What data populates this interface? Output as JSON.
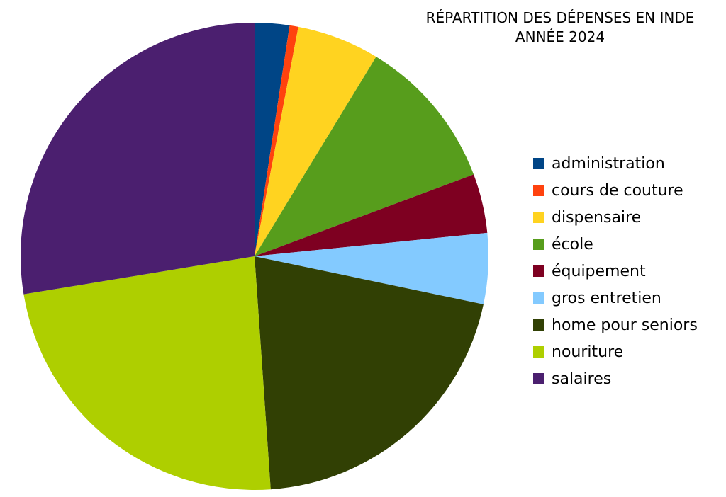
{
  "chart_data": {
    "type": "pie",
    "title": "RÉPARTITION DES DÉPENSES EN INDE",
    "subtitle": "ANNÉE 2024",
    "legend_position": "right",
    "slices": [
      {
        "label": "administration",
        "value": 2.4,
        "color": "#004586"
      },
      {
        "label": "cours de couture",
        "value": 0.6,
        "color": "#ff420e"
      },
      {
        "label": "dispensaire",
        "value": 5.7,
        "color": "#ffd320"
      },
      {
        "label": "école",
        "value": 10.6,
        "color": "#579d1c"
      },
      {
        "label": "équipement",
        "value": 4.1,
        "color": "#7e0021"
      },
      {
        "label": "gros entretien",
        "value": 4.9,
        "color": "#83caff"
      },
      {
        "label": "home pour seniors",
        "value": 20.6,
        "color": "#314004"
      },
      {
        "label": "nouriture",
        "value": 23.5,
        "color": "#aecf00"
      },
      {
        "label": "salaires",
        "value": 27.6,
        "color": "#4b1f6f"
      }
    ]
  }
}
